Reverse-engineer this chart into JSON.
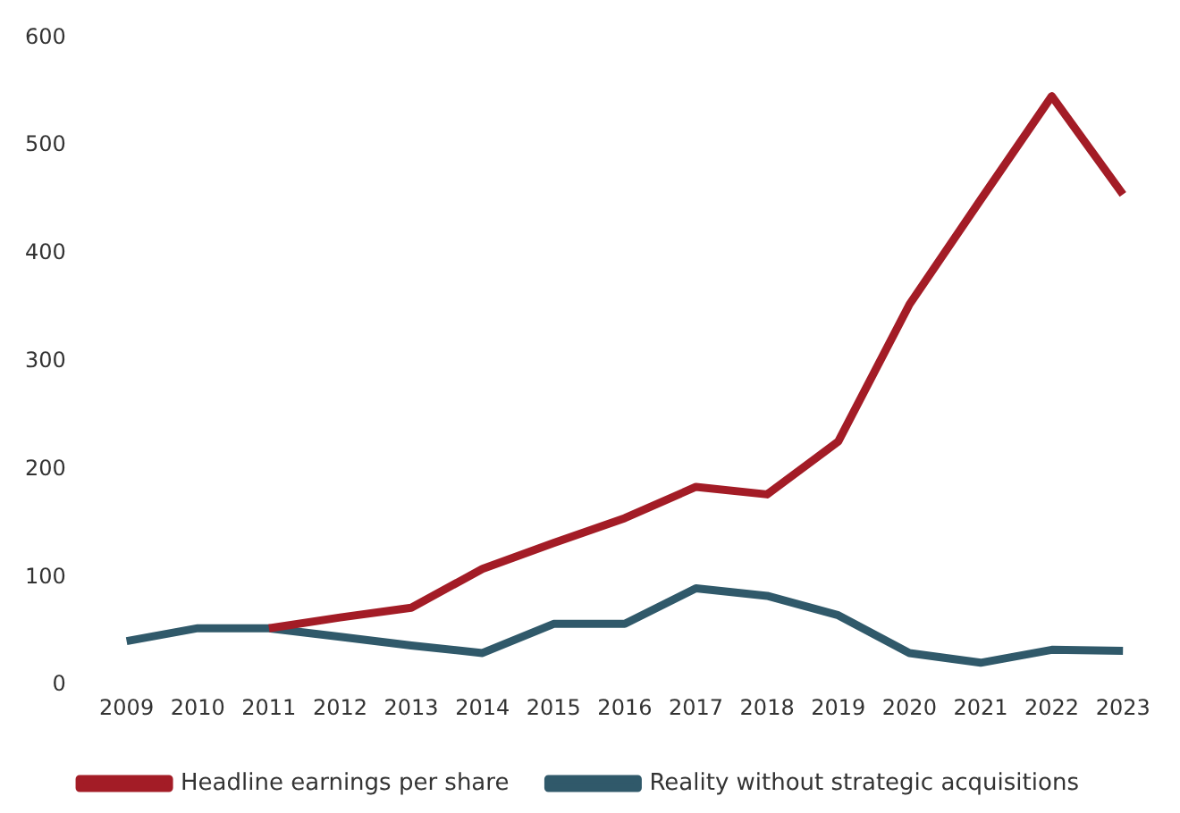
{
  "chart_data": {
    "type": "line",
    "categories": [
      "2009",
      "2010",
      "2011",
      "2012",
      "2013",
      "2014",
      "2015",
      "2016",
      "2017",
      "2018",
      "2019",
      "2020",
      "2021",
      "2022",
      "2023"
    ],
    "series": [
      {
        "name": "Headline earnings per share",
        "color": "#a31c26",
        "values": [
          null,
          null,
          53,
          63,
          72,
          108,
          132,
          155,
          184,
          177,
          226,
          353,
          450,
          546,
          455
        ]
      },
      {
        "name": "Reality without strategic acquisitions",
        "color": "#30596a",
        "values": [
          41,
          53,
          53,
          45,
          37,
          30,
          57,
          57,
          90,
          83,
          65,
          30,
          21,
          33,
          32
        ]
      }
    ],
    "ylim": [
      0,
      600
    ],
    "yticks": [
      0,
      100,
      200,
      300,
      400,
      500,
      600
    ],
    "grid": false,
    "legend": "bottom",
    "marker": "none",
    "line_style": "solid"
  }
}
